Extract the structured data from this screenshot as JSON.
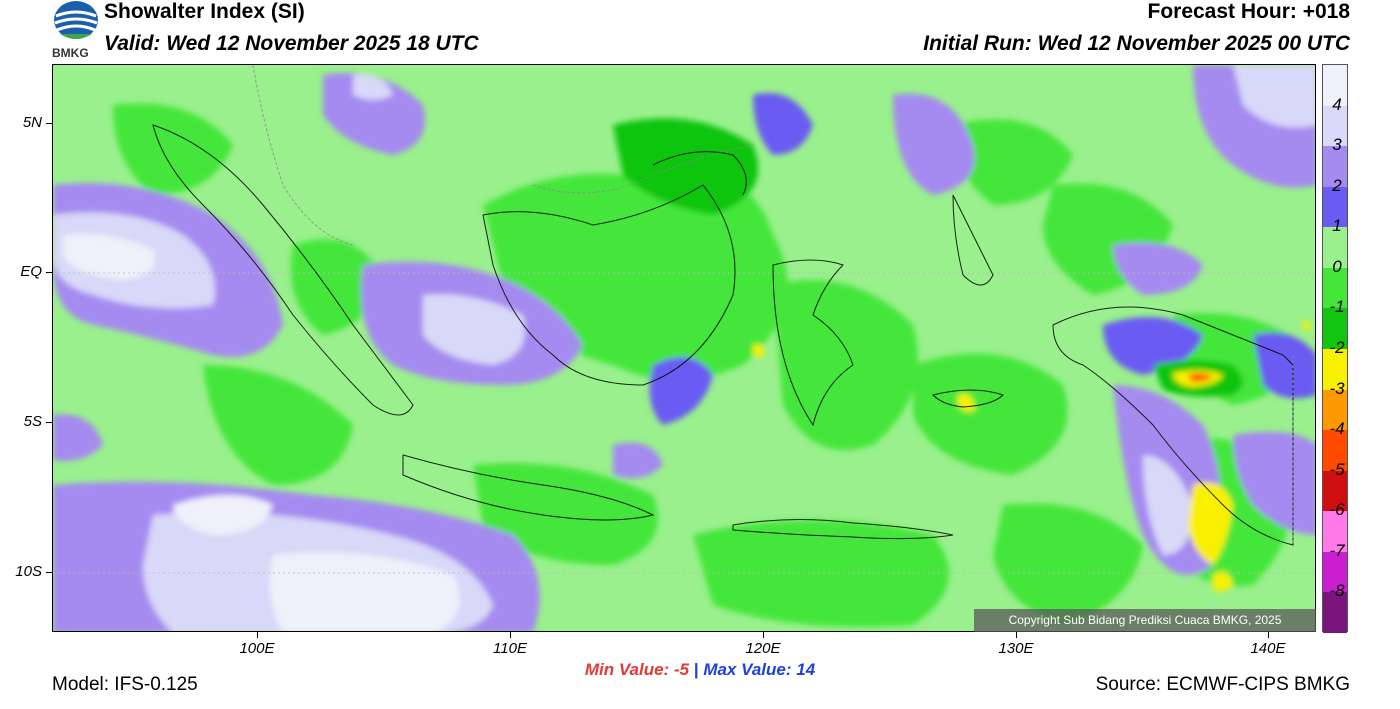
{
  "header": {
    "title": "Showalter Index (SI)",
    "valid": "Valid: Wed 12 November 2025 18 UTC",
    "forecast_hour": "Forecast Hour: +018",
    "initial_run": "Initial Run: Wed 12 November 2025 00 UTC",
    "logo_text": "BMKG"
  },
  "axes": {
    "lat_labels": [
      "5N",
      "EQ",
      "5S",
      "10S"
    ],
    "lon_labels": [
      "100E",
      "110E",
      "120E",
      "130E",
      "140E"
    ]
  },
  "colorbar": {
    "labels": [
      "4",
      "3",
      "2",
      "1",
      "0",
      "-1",
      "-2",
      "-3",
      "-4",
      "-5",
      "-6",
      "-7",
      "-8"
    ],
    "colors": [
      "#f0f0fa",
      "#d8d8f8",
      "#a58af0",
      "#6a5cf2",
      "#99f08c",
      "#44e63a",
      "#11c511",
      "#f8f000",
      "#ff9900",
      "#ff4a00",
      "#d01010",
      "#ff7ae6",
      "#c91fd0",
      "#7a157d"
    ]
  },
  "stats": {
    "min_label": "Min Value:",
    "min_value": "-5",
    "separator": "|",
    "max_label": "Max Value:",
    "max_value": "14"
  },
  "footer": {
    "model": "Model: IFS-0.125",
    "source": "Source: ECMWF-CIPS BMKG",
    "copyright": "Copyright Sub Bidang Prediksi Cuaca BMKG, 2025"
  }
}
